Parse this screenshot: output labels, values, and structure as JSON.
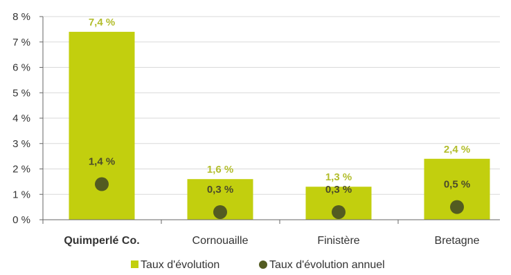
{
  "chart_data": {
    "type": "bar",
    "categories": [
      "Quimperlé Co.",
      "Cornouaille",
      "Finistère",
      "Bretagne"
    ],
    "bold_category": "Quimperlé Co.",
    "series": [
      {
        "name": "Taux d'évolution",
        "kind": "bar",
        "values": [
          7.4,
          1.6,
          1.3,
          2.4
        ],
        "labels": [
          "7,4 %",
          "1,6 %",
          "1,3 %",
          "2,4 %"
        ],
        "color": "#c2cf0e",
        "label_color": "#b2bd2c"
      },
      {
        "name": "Taux d'évolution annuel",
        "kind": "point",
        "values": [
          1.4,
          0.3,
          0.3,
          0.5
        ],
        "labels": [
          "1,4 %",
          "0,3 %",
          "0,3 %",
          "0,5 %"
        ],
        "color": "#535b21",
        "label_color": "#4b4b2b"
      }
    ],
    "y_ticks": [
      "0 %",
      "1 %",
      "2 %",
      "3 %",
      "4 %",
      "5 %",
      "6 %",
      "7 %",
      "8 %"
    ],
    "ylim": [
      0,
      8
    ],
    "grid": true,
    "legend_position": "bottom-center"
  }
}
